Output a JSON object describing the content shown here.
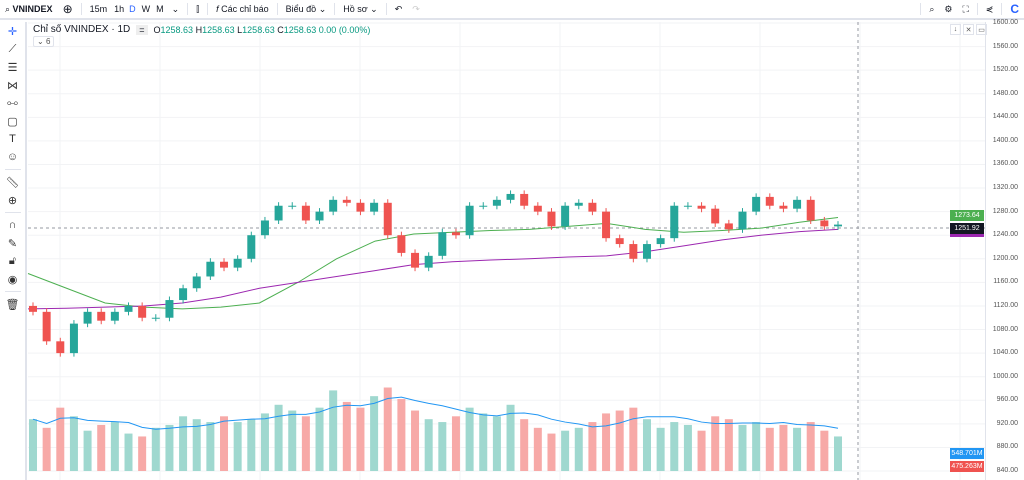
{
  "toolbar": {
    "symbol": "VNINDEX",
    "intervals": [
      "15m",
      "1h",
      "D",
      "W",
      "M"
    ],
    "active_interval": "D",
    "indicators": "Các chỉ báo",
    "chart": "Biểu đồ",
    "profile": "Hồ sơ"
  },
  "legend": {
    "title": "Chỉ số VNINDEX · 1D",
    "o_label": "O",
    "o": "1258.63",
    "h_label": "H",
    "h": "1258.63",
    "l_label": "L",
    "l": "1258.63",
    "c_label": "C",
    "c": "1258.63",
    "change": "0.00 (0.00%)",
    "indicators_count": "6"
  },
  "price_axis": {
    "ticks": [
      "1600.00",
      "1560.00",
      "1520.00",
      "1480.00",
      "1440.00",
      "1400.00",
      "1360.00",
      "1320.00",
      "1280.00",
      "1240.00",
      "1200.00",
      "1160.00",
      "1120.00",
      "1080.00",
      "1040.00",
      "1000.00",
      "960.00",
      "920.00",
      "880.00",
      "840.00"
    ],
    "ma_label": "1273.64",
    "price_label": "1251.92",
    "vol_ma_label": "548.701M",
    "vol_label": "475.263M"
  },
  "colors": {
    "up": "#26a69a",
    "down": "#ef5350",
    "ma_fast": "#4caf50",
    "ma_slow": "#9c27b0",
    "vol_ma": "#2196f3"
  },
  "chart_data": {
    "type": "candlestick",
    "ylim": [
      840,
      1600
    ],
    "closes": [
      1110,
      1060,
      1040,
      1090,
      1110,
      1095,
      1110,
      1120,
      1100,
      1100,
      1130,
      1150,
      1170,
      1195,
      1185,
      1200,
      1240,
      1265,
      1290,
      1290,
      1265,
      1280,
      1300,
      1295,
      1280,
      1295,
      1240,
      1210,
      1185,
      1205,
      1245,
      1240,
      1290,
      1290,
      1300,
      1310,
      1290,
      1280,
      1255,
      1290,
      1295,
      1280,
      1235,
      1225,
      1200,
      1225,
      1235,
      1290,
      1290,
      1285,
      1260,
      1250,
      1280,
      1305,
      1290,
      1285,
      1300,
      1265,
      1255,
      1258
    ],
    "volumes": [
      1800,
      1500,
      2200,
      1900,
      1400,
      1600,
      1700,
      1300,
      1200,
      1500,
      1600,
      1900,
      1800,
      1700,
      1900,
      1700,
      1800,
      2000,
      2300,
      2100,
      1900,
      2200,
      2800,
      2400,
      2200,
      2600,
      2900,
      2500,
      2100,
      1800,
      1700,
      1900,
      2200,
      2000,
      1900,
      2300,
      1800,
      1500,
      1300,
      1400,
      1500,
      1700,
      2000,
      2100,
      2200,
      1800,
      1500,
      1700,
      1600,
      1400,
      1900,
      1800,
      1600,
      1700,
      1500,
      1600,
      1500,
      1700,
      1400,
      1200
    ],
    "ma_fast": [
      1175,
      1150,
      1125,
      1118,
      1115,
      1118,
      1125,
      1160,
      1200,
      1230,
      1242,
      1245,
      1248,
      1250,
      1255,
      1260,
      1250,
      1245,
      1248,
      1252,
      1262,
      1270
    ],
    "ma_slow": [
      1115,
      1116,
      1118,
      1120,
      1125,
      1135,
      1150,
      1160,
      1170,
      1180,
      1190,
      1195,
      1198,
      1200,
      1203,
      1205,
      1212,
      1222,
      1232,
      1240,
      1246,
      1250
    ]
  }
}
